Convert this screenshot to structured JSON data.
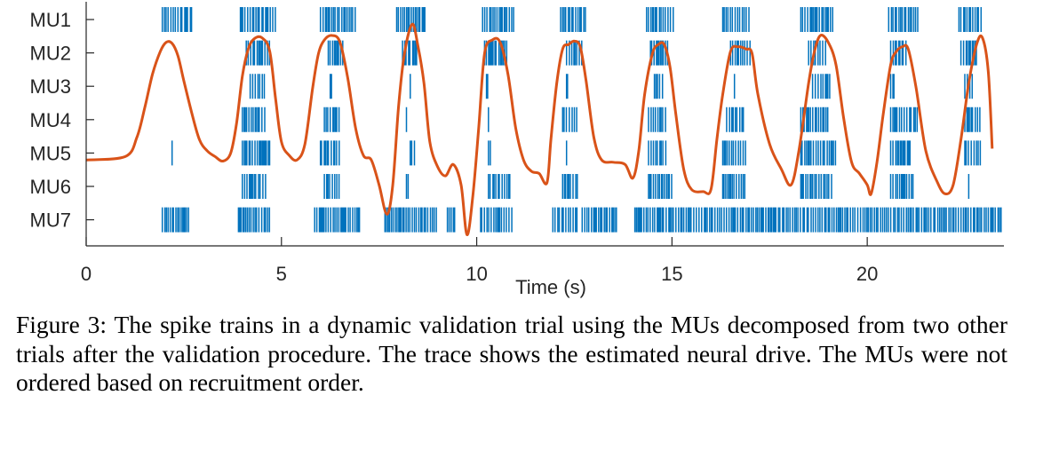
{
  "chart_data": {
    "type": "raster",
    "xlabel": "Time (s)",
    "ylabel": "",
    "xlim": [
      0,
      23.5
    ],
    "xticks": [
      0,
      5,
      10,
      15,
      20
    ],
    "units": [
      "MU1",
      "MU2",
      "MU3",
      "MU4",
      "MU5",
      "MU6",
      "MU7"
    ],
    "colors": {
      "spikes": "#0072BD",
      "trace": "#D95319"
    },
    "spike_bursts": {
      "MU1": [
        [
          1.95,
          2.7
        ],
        [
          3.95,
          4.85
        ],
        [
          6.0,
          6.9
        ],
        [
          7.95,
          8.7
        ],
        [
          10.15,
          10.95
        ],
        [
          12.15,
          12.8
        ],
        [
          14.35,
          15.05
        ],
        [
          16.3,
          17.0
        ],
        [
          18.3,
          19.15
        ],
        [
          20.55,
          21.3
        ],
        [
          22.35,
          22.95
        ]
      ],
      "MU2": [
        [
          4.1,
          4.7
        ],
        [
          6.2,
          6.6
        ],
        [
          8.1,
          8.5
        ],
        [
          10.2,
          10.8
        ],
        [
          12.3,
          12.7
        ],
        [
          14.45,
          14.9
        ],
        [
          16.5,
          17.0
        ],
        [
          18.5,
          19.0
        ],
        [
          20.6,
          21.0
        ],
        [
          22.4,
          22.8
        ]
      ],
      "MU3": [
        [
          4.2,
          4.6
        ],
        [
          6.25,
          6.3
        ],
        [
          8.3,
          8.35
        ],
        [
          10.25,
          10.3
        ],
        [
          12.3,
          12.35
        ],
        [
          14.55,
          14.8
        ],
        [
          16.6,
          16.65
        ],
        [
          18.6,
          19.1
        ],
        [
          20.6,
          20.7
        ],
        [
          22.5,
          22.7
        ]
      ],
      "MU4": [
        [
          4.0,
          4.6
        ],
        [
          6.1,
          6.5
        ],
        [
          8.2,
          8.25
        ],
        [
          10.3,
          10.35
        ],
        [
          12.2,
          12.6
        ],
        [
          14.4,
          14.9
        ],
        [
          16.4,
          16.9
        ],
        [
          18.3,
          19.0
        ],
        [
          20.6,
          21.3
        ],
        [
          22.5,
          22.9
        ]
      ],
      "MU5": [
        [
          2.2,
          2.25
        ],
        [
          4.0,
          4.7
        ],
        [
          6.0,
          6.5
        ],
        [
          8.3,
          8.45
        ],
        [
          10.3,
          10.4
        ],
        [
          12.3,
          12.35
        ],
        [
          14.4,
          14.9
        ],
        [
          16.3,
          16.9
        ],
        [
          18.3,
          19.2
        ],
        [
          20.6,
          21.1
        ],
        [
          22.5,
          22.9
        ]
      ],
      "MU6": [
        [
          4.0,
          4.6
        ],
        [
          6.1,
          6.5
        ],
        [
          8.2,
          8.25
        ],
        [
          10.3,
          10.9
        ],
        [
          12.2,
          12.6
        ],
        [
          14.4,
          15.0
        ],
        [
          16.3,
          16.9
        ],
        [
          18.3,
          19.1
        ],
        [
          20.6,
          21.2
        ],
        [
          22.6,
          22.65
        ]
      ],
      "MU7": [
        [
          1.95,
          2.65
        ],
        [
          3.9,
          4.75
        ],
        [
          5.85,
          7.0
        ],
        [
          7.65,
          9.0
        ],
        [
          9.25,
          9.5
        ],
        [
          10.1,
          10.95
        ],
        [
          11.95,
          12.6
        ],
        [
          12.7,
          13.6
        ],
        [
          14.05,
          23.45
        ]
      ]
    },
    "series": [
      {
        "type": "line",
        "x": [
          0,
          1.0,
          1.3,
          1.5,
          1.7,
          1.9,
          2.05,
          2.2,
          2.35,
          2.5,
          2.7,
          2.9,
          3.1,
          3.3,
          3.5,
          3.7,
          3.85,
          4.0,
          4.15,
          4.3,
          4.5,
          4.7,
          4.85,
          5.0,
          5.2,
          5.4,
          5.6,
          5.8,
          5.95,
          6.1,
          6.3,
          6.5,
          6.7,
          6.9,
          7.1,
          7.3,
          7.5,
          7.7,
          7.85,
          8.0,
          8.15,
          8.35,
          8.5,
          8.65,
          8.8,
          9.0,
          9.2,
          9.4,
          9.6,
          9.75,
          9.9,
          10.05,
          10.2,
          10.4,
          10.6,
          10.8,
          11.0,
          11.2,
          11.4,
          11.6,
          11.8,
          11.9,
          12.05,
          12.2,
          12.35,
          12.5,
          12.65,
          12.8,
          13.0,
          13.2,
          13.5,
          13.8,
          14.0,
          14.15,
          14.3,
          14.5,
          14.65,
          14.8,
          14.95,
          15.1,
          15.3,
          15.5,
          15.8,
          16.0,
          16.15,
          16.3,
          16.5,
          16.7,
          16.9,
          17.05,
          17.2,
          17.5,
          17.8,
          18.05,
          18.25,
          18.5,
          18.65,
          18.8,
          19.0,
          19.2,
          19.4,
          19.6,
          19.8,
          20.0,
          20.1,
          20.25,
          20.4,
          20.6,
          20.75,
          20.9,
          21.05,
          21.25,
          21.5,
          21.8,
          22.0,
          22.2,
          22.4,
          22.6,
          22.8,
          22.95,
          23.1,
          23.2
        ],
        "y": [
          3.6,
          3.75,
          4.6,
          5.9,
          7.4,
          8.4,
          8.8,
          8.75,
          8.2,
          7.1,
          5.7,
          4.5,
          4.0,
          3.75,
          3.55,
          3.9,
          5.2,
          7.3,
          8.5,
          8.95,
          9.0,
          8.4,
          6.3,
          4.4,
          3.8,
          3.6,
          4.3,
          6.8,
          8.3,
          8.9,
          9.1,
          8.8,
          7.2,
          5.0,
          3.8,
          3.6,
          2.5,
          1.2,
          2.5,
          6.0,
          8.3,
          9.6,
          8.6,
          7.0,
          4.4,
          3.3,
          2.9,
          3.4,
          2.5,
          0.3,
          2.0,
          5.0,
          8.3,
          8.9,
          8.8,
          7.4,
          5.0,
          3.6,
          3.1,
          3.0,
          2.6,
          4.5,
          7.0,
          8.5,
          8.7,
          8.85,
          8.6,
          7.1,
          4.6,
          3.6,
          3.5,
          3.4,
          2.8,
          4.0,
          6.5,
          8.3,
          8.7,
          8.7,
          7.7,
          5.6,
          3.2,
          2.3,
          2.2,
          2.3,
          4.5,
          6.5,
          8.4,
          8.6,
          8.5,
          8.3,
          6.5,
          4.3,
          3.2,
          2.5,
          4.0,
          7.0,
          8.4,
          9.1,
          8.8,
          7.8,
          5.4,
          3.5,
          3.0,
          2.5,
          2.1,
          3.5,
          5.5,
          7.8,
          8.4,
          8.6,
          8.5,
          6.8,
          4.0,
          2.6,
          2.1,
          2.5,
          4.5,
          7.0,
          8.7,
          9.0,
          7.5,
          4.1
        ]
      }
    ]
  },
  "caption": "Figure 3: The spike trains in a dynamic validation trial using the MUs decomposed from two other trials after the validation procedure. The trace shows the estimated neural drive. The MUs were not ordered based on recruitment order."
}
